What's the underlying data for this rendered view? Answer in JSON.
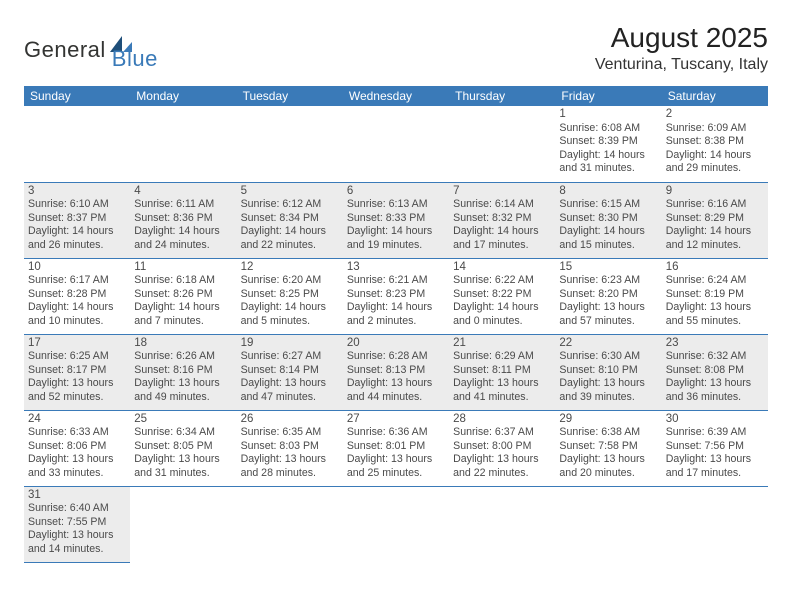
{
  "logo": {
    "part1": "General",
    "part2": "Blue"
  },
  "title": "August 2025",
  "location": "Venturina, Tuscany, Italy",
  "colors": {
    "header_bg": "#3a7ab8",
    "header_text": "#ffffff",
    "shade_bg": "#ececec",
    "cell_border": "#3a7ab8",
    "text": "#4a4a4a"
  },
  "weekdays": [
    "Sunday",
    "Monday",
    "Tuesday",
    "Wednesday",
    "Thursday",
    "Friday",
    "Saturday"
  ],
  "weeks": [
    [
      null,
      null,
      null,
      null,
      null,
      {
        "n": "1",
        "sr": "Sunrise: 6:08 AM",
        "ss": "Sunset: 8:39 PM",
        "d1": "Daylight: 14 hours",
        "d2": "and 31 minutes."
      },
      {
        "n": "2",
        "sr": "Sunrise: 6:09 AM",
        "ss": "Sunset: 8:38 PM",
        "d1": "Daylight: 14 hours",
        "d2": "and 29 minutes."
      }
    ],
    [
      {
        "n": "3",
        "sr": "Sunrise: 6:10 AM",
        "ss": "Sunset: 8:37 PM",
        "d1": "Daylight: 14 hours",
        "d2": "and 26 minutes."
      },
      {
        "n": "4",
        "sr": "Sunrise: 6:11 AM",
        "ss": "Sunset: 8:36 PM",
        "d1": "Daylight: 14 hours",
        "d2": "and 24 minutes."
      },
      {
        "n": "5",
        "sr": "Sunrise: 6:12 AM",
        "ss": "Sunset: 8:34 PM",
        "d1": "Daylight: 14 hours",
        "d2": "and 22 minutes."
      },
      {
        "n": "6",
        "sr": "Sunrise: 6:13 AM",
        "ss": "Sunset: 8:33 PM",
        "d1": "Daylight: 14 hours",
        "d2": "and 19 minutes."
      },
      {
        "n": "7",
        "sr": "Sunrise: 6:14 AM",
        "ss": "Sunset: 8:32 PM",
        "d1": "Daylight: 14 hours",
        "d2": "and 17 minutes."
      },
      {
        "n": "8",
        "sr": "Sunrise: 6:15 AM",
        "ss": "Sunset: 8:30 PM",
        "d1": "Daylight: 14 hours",
        "d2": "and 15 minutes."
      },
      {
        "n": "9",
        "sr": "Sunrise: 6:16 AM",
        "ss": "Sunset: 8:29 PM",
        "d1": "Daylight: 14 hours",
        "d2": "and 12 minutes."
      }
    ],
    [
      {
        "n": "10",
        "sr": "Sunrise: 6:17 AM",
        "ss": "Sunset: 8:28 PM",
        "d1": "Daylight: 14 hours",
        "d2": "and 10 minutes."
      },
      {
        "n": "11",
        "sr": "Sunrise: 6:18 AM",
        "ss": "Sunset: 8:26 PM",
        "d1": "Daylight: 14 hours",
        "d2": "and 7 minutes."
      },
      {
        "n": "12",
        "sr": "Sunrise: 6:20 AM",
        "ss": "Sunset: 8:25 PM",
        "d1": "Daylight: 14 hours",
        "d2": "and 5 minutes."
      },
      {
        "n": "13",
        "sr": "Sunrise: 6:21 AM",
        "ss": "Sunset: 8:23 PM",
        "d1": "Daylight: 14 hours",
        "d2": "and 2 minutes."
      },
      {
        "n": "14",
        "sr": "Sunrise: 6:22 AM",
        "ss": "Sunset: 8:22 PM",
        "d1": "Daylight: 14 hours",
        "d2": "and 0 minutes."
      },
      {
        "n": "15",
        "sr": "Sunrise: 6:23 AM",
        "ss": "Sunset: 8:20 PM",
        "d1": "Daylight: 13 hours",
        "d2": "and 57 minutes."
      },
      {
        "n": "16",
        "sr": "Sunrise: 6:24 AM",
        "ss": "Sunset: 8:19 PM",
        "d1": "Daylight: 13 hours",
        "d2": "and 55 minutes."
      }
    ],
    [
      {
        "n": "17",
        "sr": "Sunrise: 6:25 AM",
        "ss": "Sunset: 8:17 PM",
        "d1": "Daylight: 13 hours",
        "d2": "and 52 minutes."
      },
      {
        "n": "18",
        "sr": "Sunrise: 6:26 AM",
        "ss": "Sunset: 8:16 PM",
        "d1": "Daylight: 13 hours",
        "d2": "and 49 minutes."
      },
      {
        "n": "19",
        "sr": "Sunrise: 6:27 AM",
        "ss": "Sunset: 8:14 PM",
        "d1": "Daylight: 13 hours",
        "d2": "and 47 minutes."
      },
      {
        "n": "20",
        "sr": "Sunrise: 6:28 AM",
        "ss": "Sunset: 8:13 PM",
        "d1": "Daylight: 13 hours",
        "d2": "and 44 minutes."
      },
      {
        "n": "21",
        "sr": "Sunrise: 6:29 AM",
        "ss": "Sunset: 8:11 PM",
        "d1": "Daylight: 13 hours",
        "d2": "and 41 minutes."
      },
      {
        "n": "22",
        "sr": "Sunrise: 6:30 AM",
        "ss": "Sunset: 8:10 PM",
        "d1": "Daylight: 13 hours",
        "d2": "and 39 minutes."
      },
      {
        "n": "23",
        "sr": "Sunrise: 6:32 AM",
        "ss": "Sunset: 8:08 PM",
        "d1": "Daylight: 13 hours",
        "d2": "and 36 minutes."
      }
    ],
    [
      {
        "n": "24",
        "sr": "Sunrise: 6:33 AM",
        "ss": "Sunset: 8:06 PM",
        "d1": "Daylight: 13 hours",
        "d2": "and 33 minutes."
      },
      {
        "n": "25",
        "sr": "Sunrise: 6:34 AM",
        "ss": "Sunset: 8:05 PM",
        "d1": "Daylight: 13 hours",
        "d2": "and 31 minutes."
      },
      {
        "n": "26",
        "sr": "Sunrise: 6:35 AM",
        "ss": "Sunset: 8:03 PM",
        "d1": "Daylight: 13 hours",
        "d2": "and 28 minutes."
      },
      {
        "n": "27",
        "sr": "Sunrise: 6:36 AM",
        "ss": "Sunset: 8:01 PM",
        "d1": "Daylight: 13 hours",
        "d2": "and 25 minutes."
      },
      {
        "n": "28",
        "sr": "Sunrise: 6:37 AM",
        "ss": "Sunset: 8:00 PM",
        "d1": "Daylight: 13 hours",
        "d2": "and 22 minutes."
      },
      {
        "n": "29",
        "sr": "Sunrise: 6:38 AM",
        "ss": "Sunset: 7:58 PM",
        "d1": "Daylight: 13 hours",
        "d2": "and 20 minutes."
      },
      {
        "n": "30",
        "sr": "Sunrise: 6:39 AM",
        "ss": "Sunset: 7:56 PM",
        "d1": "Daylight: 13 hours",
        "d2": "and 17 minutes."
      }
    ],
    [
      {
        "n": "31",
        "sr": "Sunrise: 6:40 AM",
        "ss": "Sunset: 7:55 PM",
        "d1": "Daylight: 13 hours",
        "d2": "and 14 minutes."
      },
      null,
      null,
      null,
      null,
      null,
      null
    ]
  ]
}
